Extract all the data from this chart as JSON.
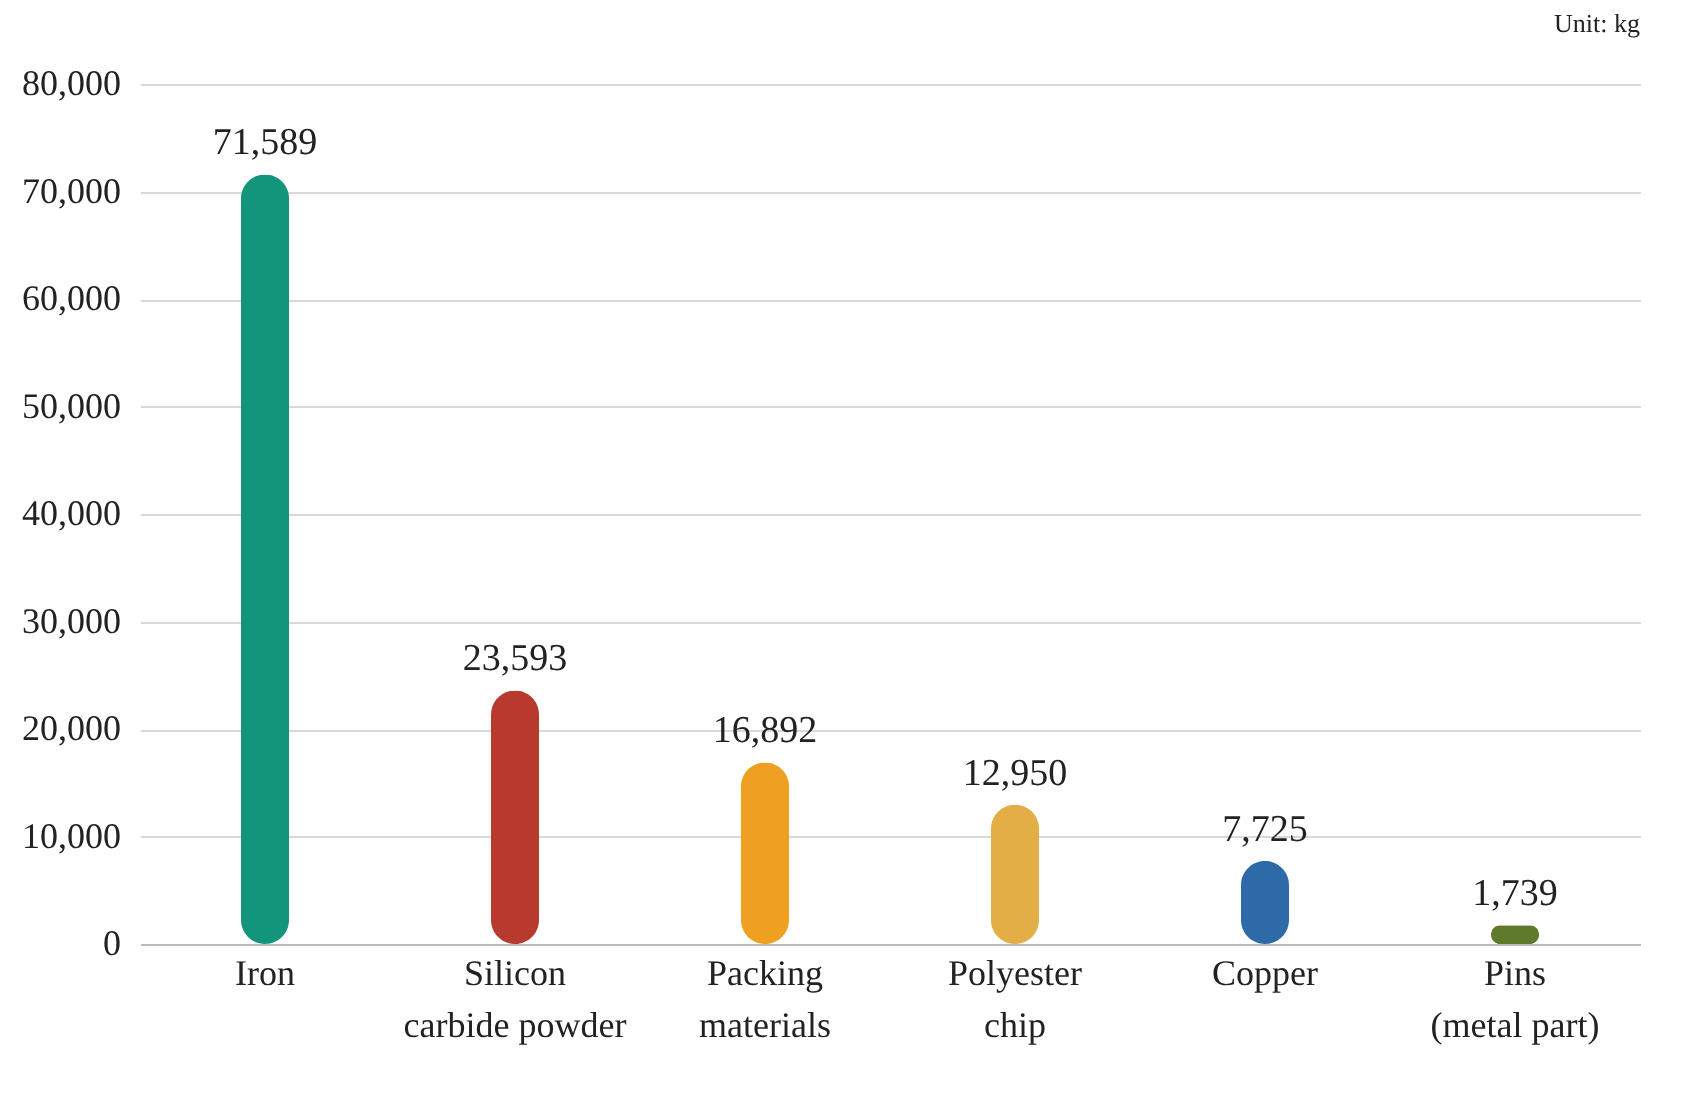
{
  "chart_data": {
    "type": "bar",
    "categories": [
      "Iron",
      "Silicon\ncarbide powder",
      "Packing\nmaterials",
      "Polyester\nchip",
      "Copper",
      "Pins\n(metal part)"
    ],
    "values": [
      71589,
      23593,
      16892,
      12950,
      7725,
      1739
    ],
    "value_labels": [
      "71,589",
      "23,593",
      "16,892",
      "12,950",
      "7,725",
      "1,739"
    ],
    "colors": [
      "#12957a",
      "#b83a2e",
      "#f0a020",
      "#e2ae45",
      "#2f6aa8",
      "#5f7a2a"
    ],
    "ylim": [
      0,
      80000
    ],
    "yticks": [
      {
        "value": 0,
        "label": "0"
      },
      {
        "value": 10000,
        "label": "10,000"
      },
      {
        "value": 20000,
        "label": "20,000"
      },
      {
        "value": 30000,
        "label": "30,000"
      },
      {
        "value": 40000,
        "label": "40,000"
      },
      {
        "value": 50000,
        "label": "50,000"
      },
      {
        "value": 60000,
        "label": "60,000"
      },
      {
        "value": 70000,
        "label": "70,000"
      },
      {
        "value": 80000,
        "label": "80,000"
      }
    ],
    "grid": "y",
    "annotations": [
      "Unit: kg"
    ]
  }
}
